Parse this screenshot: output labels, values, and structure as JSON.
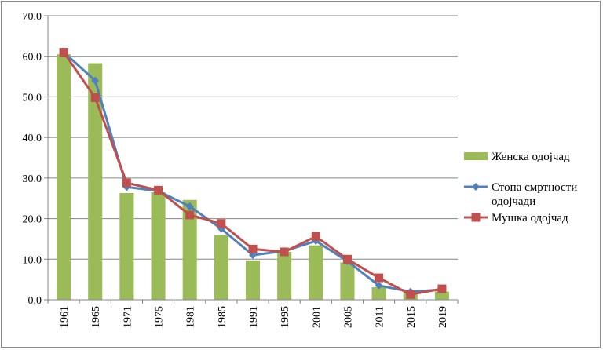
{
  "chart_data": {
    "type": "bar",
    "categories": [
      "1961",
      "1965",
      "1971",
      "1975",
      "1981",
      "1985",
      "1991",
      "1995",
      "2001",
      "2005",
      "2011",
      "2015",
      "2019"
    ],
    "ylim": [
      0,
      70
    ],
    "yticks": [
      "0.0",
      "10.0",
      "20.0",
      "30.0",
      "40.0",
      "50.0",
      "60.0",
      "70.0"
    ],
    "grid": true,
    "legend_position": "right",
    "series": [
      {
        "name": "Женска одојчад",
        "kind": "bar",
        "color": "#9bbb59",
        "values": [
          60.5,
          58.3,
          26.3,
          26.5,
          24.6,
          15.9,
          9.7,
          11.8,
          13.4,
          9.2,
          3.1,
          2.3,
          2.0
        ]
      },
      {
        "name": "Стопа смртности одојчади",
        "name_lines": [
          "Стопа смртности",
          "одојчади"
        ],
        "kind": "line",
        "marker": "diamond",
        "color": "#4f81bd",
        "values": [
          61.0,
          54.0,
          27.8,
          26.8,
          23.0,
          17.5,
          11.0,
          12.0,
          14.5,
          9.5,
          3.5,
          2.0,
          2.5
        ]
      },
      {
        "name": "Мушка одојчад",
        "kind": "line",
        "marker": "square",
        "color": "#c0504d",
        "values": [
          61.0,
          49.8,
          28.8,
          27.0,
          20.9,
          18.8,
          12.5,
          11.8,
          15.6,
          10.0,
          5.4,
          1.3,
          2.7
        ]
      }
    ]
  }
}
